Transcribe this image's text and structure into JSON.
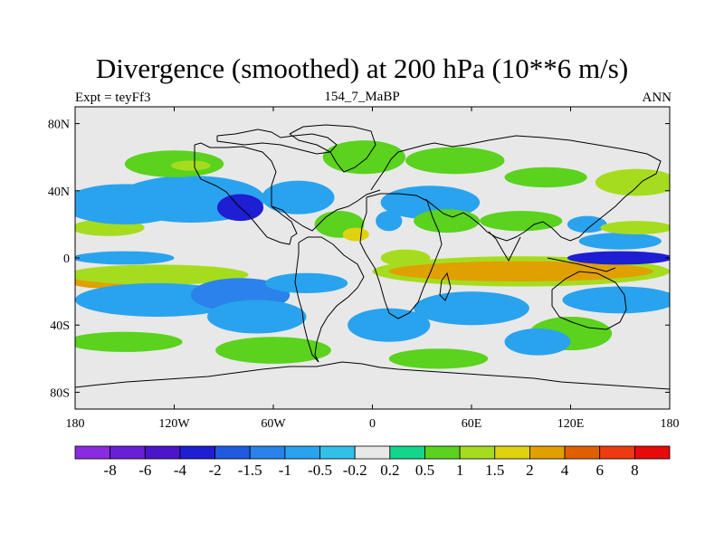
{
  "title": "Divergence (smoothed) at 200 hPa (10**6 m/s)",
  "subtitle_left": "Expt = teyFf3",
  "subtitle_center": "154_7_MaBP",
  "subtitle_right": "ANN",
  "lat_ticks": [
    {
      "lat": 80,
      "label": "80N"
    },
    {
      "lat": 40,
      "label": "40N"
    },
    {
      "lat": 0,
      "label": "0"
    },
    {
      "lat": -40,
      "label": "40S"
    },
    {
      "lat": -80,
      "label": "80S"
    }
  ],
  "lon_ticks": [
    {
      "lon": -180,
      "label": "180"
    },
    {
      "lon": -120,
      "label": "120W"
    },
    {
      "lon": -60,
      "label": "60W"
    },
    {
      "lon": 0,
      "label": "0"
    },
    {
      "lon": 60,
      "label": "60E"
    },
    {
      "lon": 120,
      "label": "120E"
    },
    {
      "lon": 180,
      "label": "180"
    }
  ],
  "colorbar": {
    "colors": [
      "#8a2be2",
      "#6a1fd6",
      "#4b16c9",
      "#1e1ed2",
      "#1f5ae0",
      "#2a82ea",
      "#29a3ee",
      "#30c0e8",
      "#e8e8e8",
      "#14d68a",
      "#5ad21e",
      "#a6dc1e",
      "#e0d20e",
      "#e0a000",
      "#e06000",
      "#ee3a12",
      "#e80a0a"
    ],
    "labels": [
      "-8",
      "-6",
      "-4",
      "-2",
      "-1.5",
      "-1",
      "-0.5",
      "-0.2",
      "0.2",
      "0.5",
      "1",
      "1.5",
      "2",
      "4",
      "6",
      "8"
    ]
  },
  "field_blobs": [
    {
      "lon": -160,
      "lat": 18,
      "rx": 22,
      "ry": 5,
      "level": 11
    },
    {
      "lon": -165,
      "lat": 0,
      "rx": 16,
      "ry": 3,
      "level": 4
    },
    {
      "lon": -150,
      "lat": 0,
      "rx": 30,
      "ry": 4,
      "level": 6
    },
    {
      "lon": -165,
      "lat": -13,
      "rx": 20,
      "ry": 5,
      "level": 13
    },
    {
      "lon": -130,
      "lat": -10,
      "rx": 55,
      "ry": 6,
      "level": 11
    },
    {
      "lon": -150,
      "lat": 32,
      "rx": 38,
      "ry": 12,
      "level": 6
    },
    {
      "lon": -110,
      "lat": 35,
      "rx": 45,
      "ry": 14,
      "level": 6
    },
    {
      "lon": -80,
      "lat": 30,
      "rx": 14,
      "ry": 8,
      "level": 3
    },
    {
      "lon": -45,
      "lat": 36,
      "rx": 22,
      "ry": 10,
      "level": 6
    },
    {
      "lon": -120,
      "lat": 56,
      "rx": 30,
      "ry": 8,
      "level": 10
    },
    {
      "lon": -110,
      "lat": 55,
      "rx": 12,
      "ry": 3,
      "level": 11
    },
    {
      "lon": -5,
      "lat": 60,
      "rx": 25,
      "ry": 10,
      "level": 10
    },
    {
      "lon": -20,
      "lat": 20,
      "rx": 15,
      "ry": 8,
      "level": 10
    },
    {
      "lon": -10,
      "lat": 14,
      "rx": 8,
      "ry": 4,
      "level": 12
    },
    {
      "lon": 10,
      "lat": 22,
      "rx": 8,
      "ry": 6,
      "level": 6
    },
    {
      "lon": 35,
      "lat": 33,
      "rx": 30,
      "ry": 10,
      "level": 6
    },
    {
      "lon": 45,
      "lat": 22,
      "rx": 20,
      "ry": 7,
      "level": 10
    },
    {
      "lon": 20,
      "lat": 0,
      "rx": 15,
      "ry": 5,
      "level": 11
    },
    {
      "lon": 50,
      "lat": 58,
      "rx": 30,
      "ry": 8,
      "level": 10
    },
    {
      "lon": 105,
      "lat": 48,
      "rx": 25,
      "ry": 6,
      "level": 10
    },
    {
      "lon": 160,
      "lat": 45,
      "rx": 25,
      "ry": 8,
      "level": 11
    },
    {
      "lon": 90,
      "lat": 22,
      "rx": 25,
      "ry": 6,
      "level": 10
    },
    {
      "lon": 130,
      "lat": 20,
      "rx": 12,
      "ry": 5,
      "level": 6
    },
    {
      "lon": 90,
      "lat": -8,
      "rx": 90,
      "ry": 9,
      "level": 11
    },
    {
      "lon": 90,
      "lat": -8,
      "rx": 80,
      "ry": 6,
      "level": 13
    },
    {
      "lon": 150,
      "lat": 0,
      "rx": 32,
      "ry": 4,
      "level": 3
    },
    {
      "lon": 150,
      "lat": 10,
      "rx": 25,
      "ry": 5,
      "level": 6
    },
    {
      "lon": 160,
      "lat": 18,
      "rx": 22,
      "ry": 4,
      "level": 11
    },
    {
      "lon": -130,
      "lat": -25,
      "rx": 50,
      "ry": 10,
      "level": 6
    },
    {
      "lon": -80,
      "lat": -22,
      "rx": 30,
      "ry": 10,
      "level": 5
    },
    {
      "lon": -70,
      "lat": -35,
      "rx": 30,
      "ry": 10,
      "level": 6
    },
    {
      "lon": -40,
      "lat": -15,
      "rx": 25,
      "ry": 6,
      "level": 6
    },
    {
      "lon": -150,
      "lat": -50,
      "rx": 35,
      "ry": 6,
      "level": 10
    },
    {
      "lon": -60,
      "lat": -55,
      "rx": 35,
      "ry": 8,
      "level": 10
    },
    {
      "lon": 10,
      "lat": -40,
      "rx": 25,
      "ry": 10,
      "level": 6
    },
    {
      "lon": 60,
      "lat": -30,
      "rx": 35,
      "ry": 10,
      "level": 6
    },
    {
      "lon": 40,
      "lat": -60,
      "rx": 30,
      "ry": 6,
      "level": 10
    },
    {
      "lon": 120,
      "lat": -45,
      "rx": 25,
      "ry": 10,
      "level": 10
    },
    {
      "lon": 150,
      "lat": -25,
      "rx": 35,
      "ry": 8,
      "level": 6
    },
    {
      "lon": 100,
      "lat": -50,
      "rx": 20,
      "ry": 8,
      "level": 6
    }
  ]
}
